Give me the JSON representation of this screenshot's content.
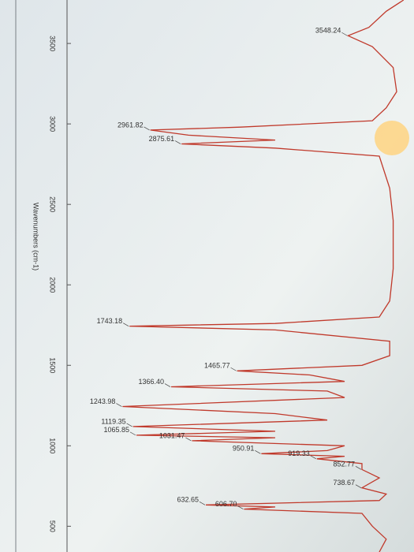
{
  "chart_data": {
    "type": "line",
    "orientation": "rotated",
    "x_label": "Wavenumbers (cm-1)",
    "xlim": [
      3770,
      340
    ],
    "xticks": [
      3500,
      3000,
      2500,
      2000,
      1500,
      1000,
      500
    ],
    "ylim": [
      0,
      100
    ],
    "color": "#c0392b",
    "x": [
      3770,
      3700,
      3600,
      3548.24,
      3480,
      3350,
      3200,
      3100,
      3020,
      2980,
      2961.82,
      2930,
      2900,
      2875.61,
      2850,
      2800,
      2600,
      2400,
      2100,
      1900,
      1800,
      1760,
      1743.18,
      1720,
      1650,
      1560,
      1500,
      1465.77,
      1440,
      1400,
      1366.4,
      1340,
      1300,
      1243.98,
      1200,
      1160,
      1119.35,
      1090,
      1065.85,
      1050,
      1031.47,
      1000,
      970,
      950.91,
      935,
      919.33,
      890,
      852.77,
      800,
      738.67,
      700,
      660,
      632.65,
      620,
      606.7,
      580,
      500,
      420,
      340
    ],
    "values": [
      97,
      92,
      87,
      81,
      88,
      94,
      95,
      92,
      88,
      50,
      24,
      35,
      60,
      33,
      60,
      90,
      93,
      94,
      94,
      93,
      90,
      60,
      18,
      60,
      93,
      93,
      85,
      49,
      70,
      80,
      30,
      75,
      80,
      16,
      60,
      75,
      19,
      60,
      20,
      60,
      36,
      80,
      75,
      56,
      80,
      72,
      85,
      85,
      90,
      85,
      92,
      90,
      40,
      60,
      51,
      85,
      88,
      92,
      90
    ],
    "annotations": [
      {
        "x": 3548.24,
        "label": "3548.24"
      },
      {
        "x": 2961.82,
        "label": "2961.82"
      },
      {
        "x": 2875.61,
        "label": "2875.61"
      },
      {
        "x": 1743.18,
        "label": "1743.18"
      },
      {
        "x": 1465.77,
        "label": "1465.77"
      },
      {
        "x": 1366.4,
        "label": "1366.40"
      },
      {
        "x": 1243.98,
        "label": "1243.98"
      },
      {
        "x": 1119.35,
        "label": "1119.35"
      },
      {
        "x": 1065.85,
        "label": "1065.85"
      },
      {
        "x": 1031.47,
        "label": "1031.47"
      },
      {
        "x": 950.91,
        "label": "950.91"
      },
      {
        "x": 919.33,
        "label": "919.33"
      },
      {
        "x": 852.77,
        "label": "852.77"
      },
      {
        "x": 738.67,
        "label": "738.67"
      },
      {
        "x": 632.65,
        "label": "632.65"
      },
      {
        "x": 606.7,
        "label": "606.70"
      }
    ]
  }
}
